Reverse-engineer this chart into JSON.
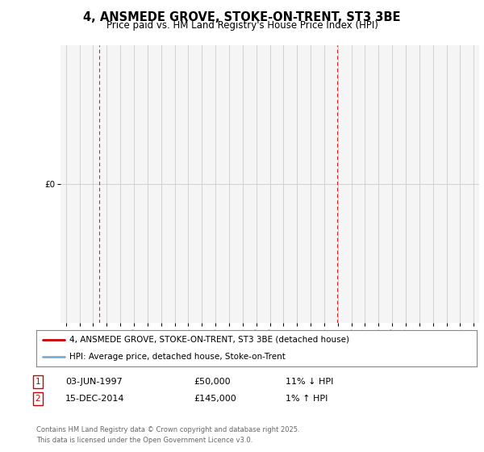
{
  "title": "4, ANSMEDE GROVE, STOKE-ON-TRENT, ST3 3BE",
  "subtitle": "Price paid vs. HM Land Registry's House Price Index (HPI)",
  "legend_line1": "4, ANSMEDE GROVE, STOKE-ON-TRENT, ST3 3BE (detached house)",
  "legend_line2": "HPI: Average price, detached house, Stoke-on-Trent",
  "sale1_date": "03-JUN-1997",
  "sale1_price": 50000,
  "sale1_hpi": "11% ↓ HPI",
  "sale2_date": "15-DEC-2014",
  "sale2_price": 145000,
  "sale2_hpi": "1% ↑ HPI",
  "footer": "Contains HM Land Registry data © Crown copyright and database right 2025.\nThis data is licensed under the Open Government Licence v3.0.",
  "ylim": [
    0,
    260000
  ],
  "ytick_step": 20000,
  "red_color": "#cc0000",
  "blue_color": "#7aacd6",
  "background_color": "#ffffff",
  "grid_color": "#cccccc",
  "sale1_x": 1997.42,
  "sale2_x": 2014.96,
  "xlim_left": 1994.6,
  "xlim_right": 2025.4
}
